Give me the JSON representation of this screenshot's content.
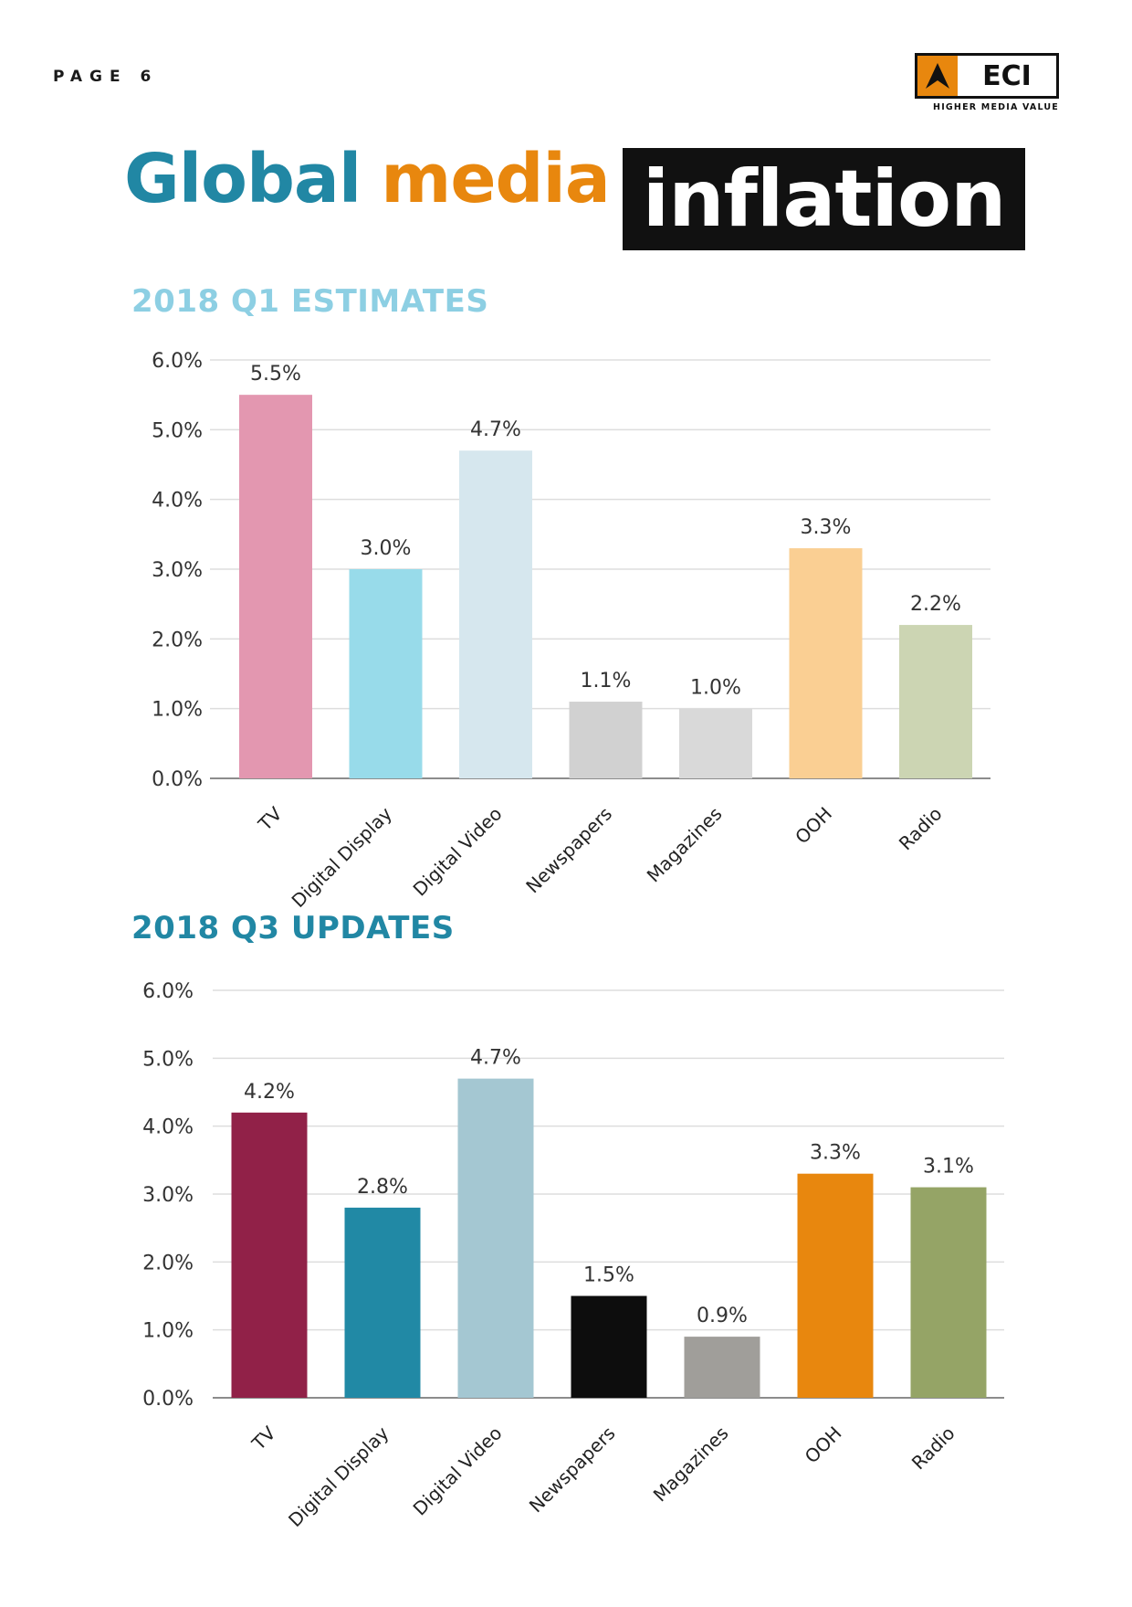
{
  "header": {
    "page_label": "PAGE 6",
    "logo": {
      "text": "ECI",
      "tagline": "HIGHER MEDIA VALUE",
      "accent": "#e8870e"
    }
  },
  "title": {
    "word1": "Global",
    "word2": "media",
    "word3": "inflation",
    "colors": {
      "word1": "#2187a4",
      "word2": "#e8870e",
      "word3_bg": "#111111"
    }
  },
  "sections": [
    {
      "title": "2018 Q1 ESTIMATES",
      "color": "#8dcfe3"
    },
    {
      "title": "2018 Q3 UPDATES",
      "color": "#2187a4"
    }
  ],
  "chart_data": [
    {
      "type": "bar",
      "title": "2018 Q1 ESTIMATES",
      "categories": [
        "TV",
        "Digital Display",
        "Digital Video",
        "Newspapers",
        "Magazines",
        "OOH",
        "Radio"
      ],
      "values": [
        5.5,
        3.0,
        4.7,
        1.1,
        1.0,
        3.3,
        2.2
      ],
      "value_labels": [
        "5.5%",
        "3.0%",
        "4.7%",
        "1.1%",
        "1.0%",
        "3.3%",
        "2.2%"
      ],
      "colors": [
        "#e397b0",
        "#98dbea",
        "#d6e7ee",
        "#d1d1d1",
        "#d9d9d9",
        "#facf93",
        "#ccd5b3"
      ],
      "ylim": [
        0,
        6
      ],
      "yticks": [
        "0.0%",
        "1.0%",
        "2.0%",
        "3.0%",
        "4.0%",
        "5.0%",
        "6.0%"
      ],
      "grid": true,
      "xlabel": "",
      "ylabel": ""
    },
    {
      "type": "bar",
      "title": "2018 Q3 UPDATES",
      "categories": [
        "TV",
        "Digital Display",
        "Digital Video",
        "Newspapers",
        "Magazines",
        "OOH",
        "Radio"
      ],
      "values": [
        4.2,
        2.8,
        4.7,
        1.5,
        0.9,
        3.3,
        3.1
      ],
      "value_labels": [
        "4.2%",
        "2.8%",
        "4.7%",
        "1.5%",
        "0.9%",
        "3.3%",
        "3.1%"
      ],
      "colors": [
        "#912148",
        "#2189a5",
        "#a4c7d2",
        "#0d0d0d",
        "#a09e9a",
        "#e8870e",
        "#95a466"
      ],
      "ylim": [
        0,
        6
      ],
      "yticks": [
        "0.0%",
        "1.0%",
        "2.0%",
        "3.0%",
        "4.0%",
        "5.0%",
        "6.0%"
      ],
      "grid": true,
      "xlabel": "",
      "ylabel": ""
    }
  ]
}
